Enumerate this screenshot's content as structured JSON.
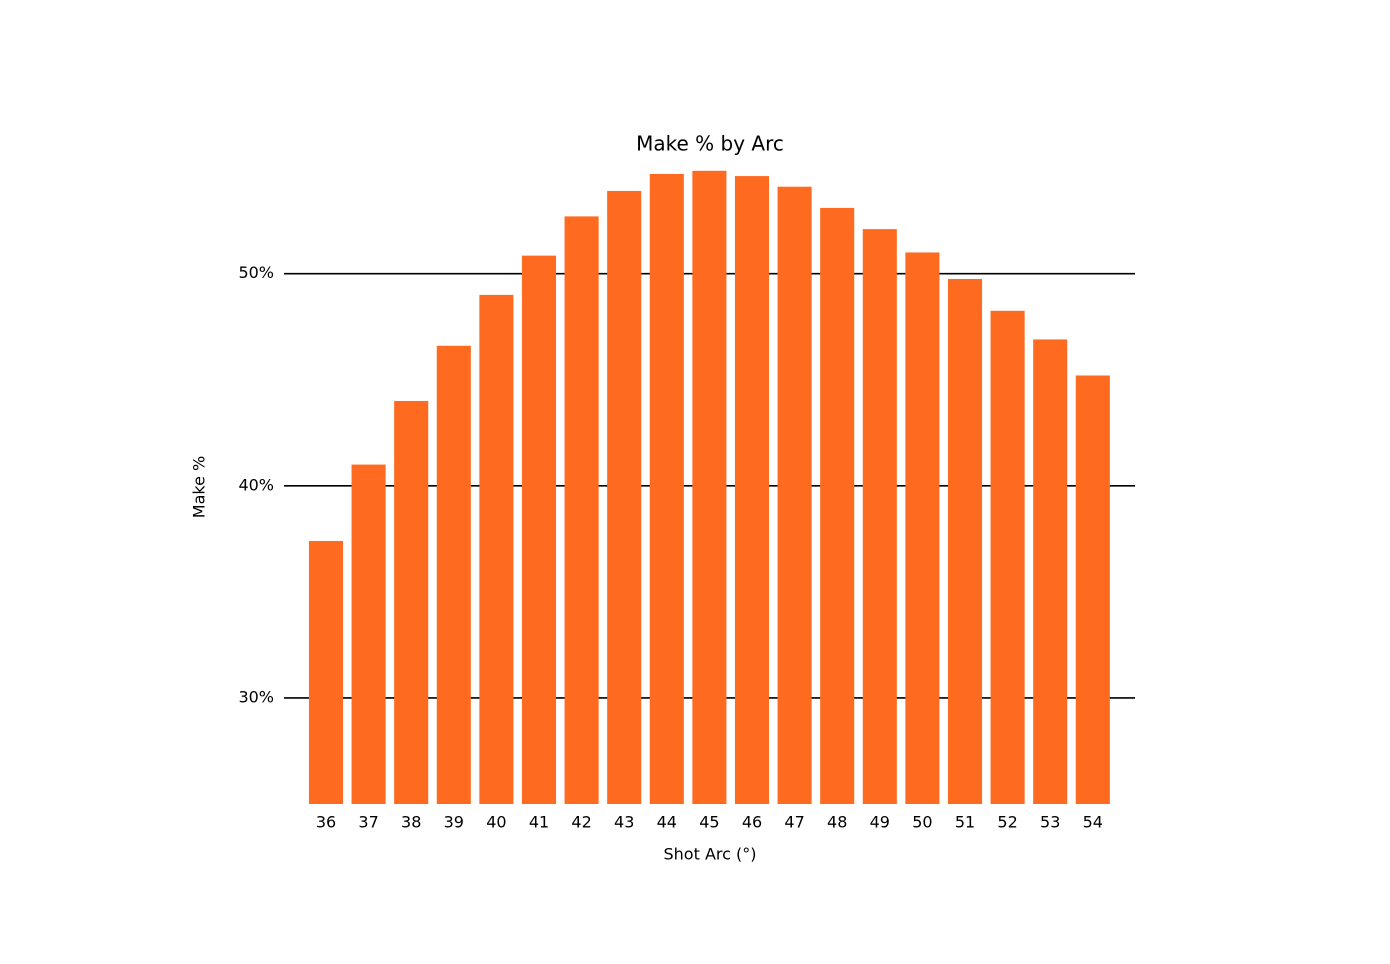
{
  "chart_data": {
    "type": "bar",
    "title": "Make % by Arc",
    "x_label": "Shot Arc (°)",
    "y_label": "Make %",
    "categories": [
      "36",
      "37",
      "38",
      "39",
      "40",
      "41",
      "42",
      "43",
      "44",
      "45",
      "46",
      "47",
      "48",
      "49",
      "50",
      "51",
      "52",
      "53",
      "54"
    ],
    "values": [
      37.4,
      41.0,
      44.0,
      46.6,
      49.0,
      50.85,
      52.7,
      53.9,
      54.7,
      54.85,
      54.6,
      54.1,
      53.1,
      52.1,
      51.0,
      49.75,
      48.25,
      46.9,
      45.2
    ],
    "color": "#fe6a1f",
    "ylim": [
      25,
      55.5
    ],
    "yticks": [
      {
        "value": 30,
        "label": "30%"
      },
      {
        "value": 40,
        "label": "40%"
      },
      {
        "value": 50,
        "label": "50%"
      }
    ],
    "grid": true
  }
}
